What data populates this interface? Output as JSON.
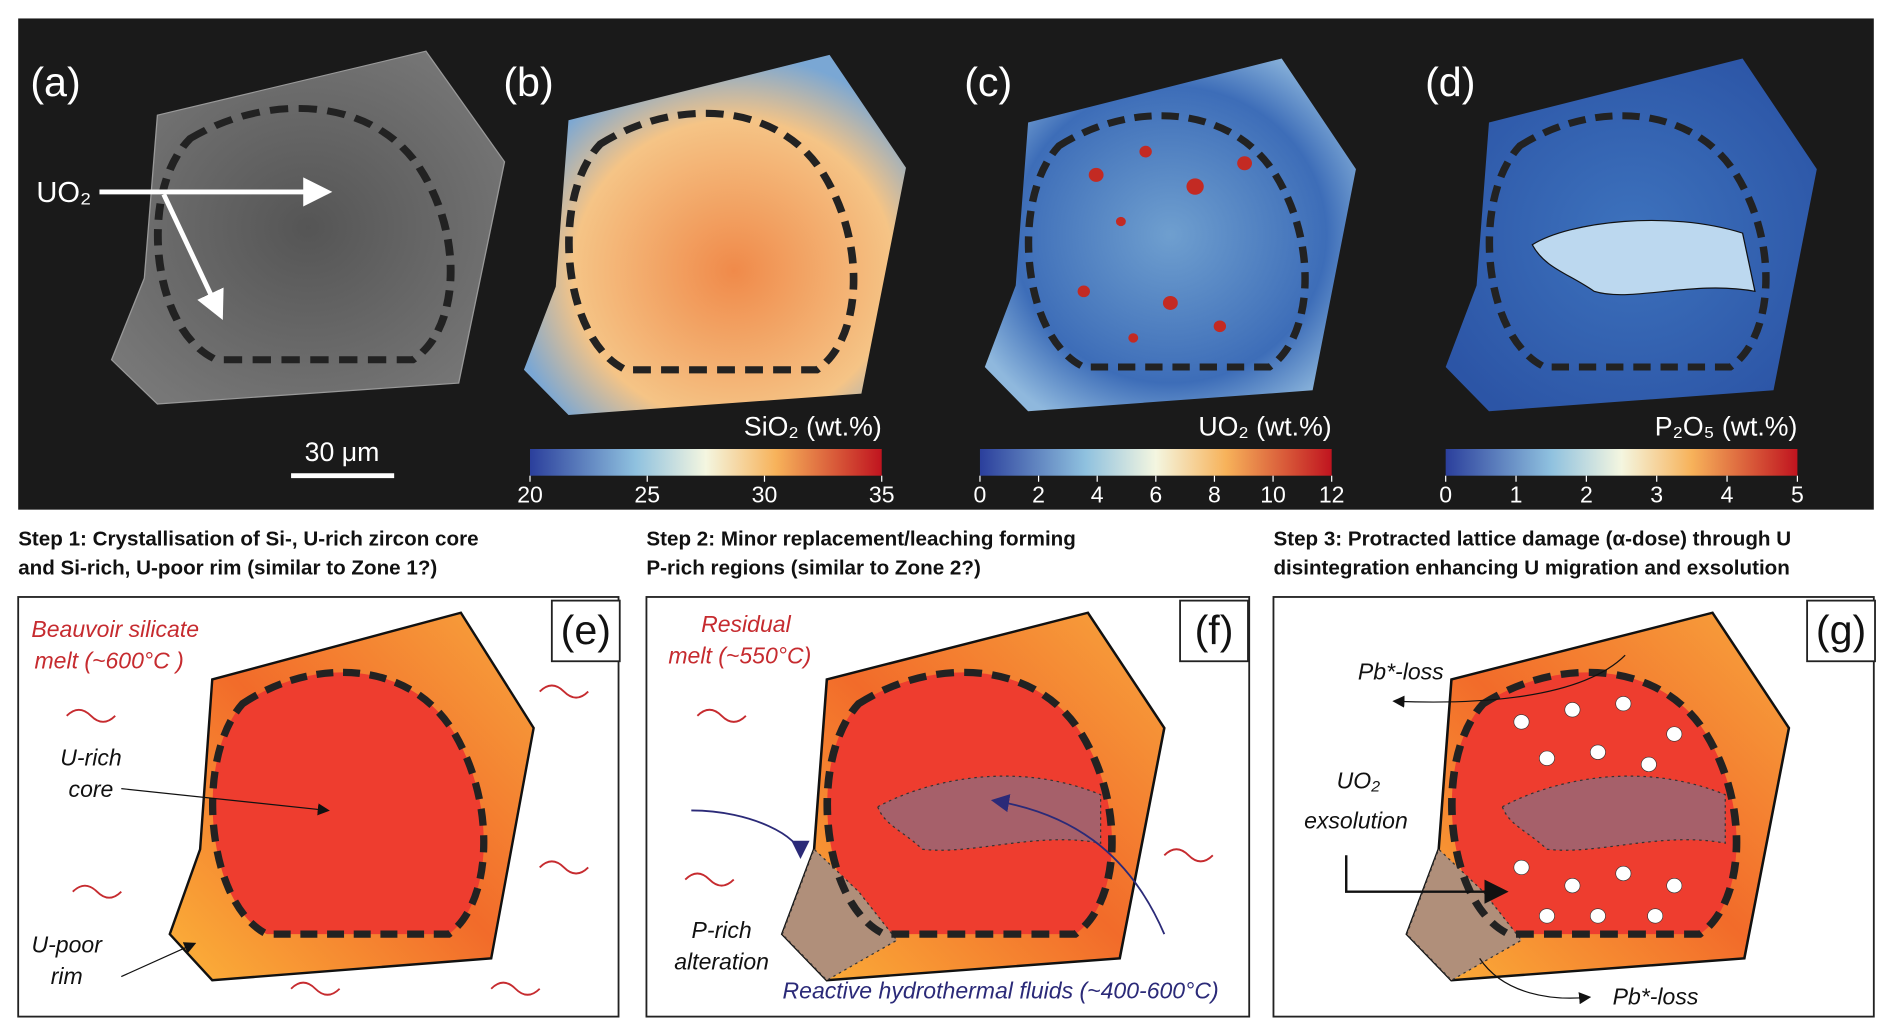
{
  "panels": [
    {
      "label": "(a)",
      "annotation": "UO₂",
      "scale_bar": "30 μm"
    },
    {
      "label": "(b)",
      "colorbar": {
        "title": "SiO₂ (wt.%)",
        "ticks": [
          20,
          25,
          30,
          35
        ]
      }
    },
    {
      "label": "(c)",
      "colorbar": {
        "title": "UO₂ (wt.%)",
        "ticks": [
          0,
          2,
          4,
          6,
          8,
          10,
          12
        ]
      }
    },
    {
      "label": "(d)",
      "colorbar": {
        "title": "P₂O₅ (wt.%)",
        "ticks": [
          0,
          1,
          2,
          3,
          4,
          5
        ]
      }
    }
  ],
  "steps": [
    {
      "title": [
        "Step 1: Crystallisation of Si-, U-rich zircon core",
        "and Si-rich, U-poor rim (similar to Zone 1?)"
      ],
      "label": "(e)",
      "annotations": [
        "Beauvoir silicate",
        "melt (~600°C )",
        "U-rich",
        "core",
        "U-poor",
        "rim"
      ]
    },
    {
      "title": [
        "Step 2: Minor replacement/leaching forming",
        "P-rich regions (similar to Zone 2?)"
      ],
      "label": "(f)",
      "annotations": [
        "Residual",
        "melt (~550°C)",
        "P-rich",
        "alteration",
        "Reactive hydrothermal fluids (~400-600°C)"
      ]
    },
    {
      "title": [
        "Step 3: Protracted lattice damage (α-dose) through U",
        "disintegration enhancing U migration and exsolution"
      ],
      "label": "(g)",
      "annotations": [
        "Pb*-loss",
        "UO₂",
        "exsolution",
        "Pb*-loss"
      ]
    }
  ]
}
